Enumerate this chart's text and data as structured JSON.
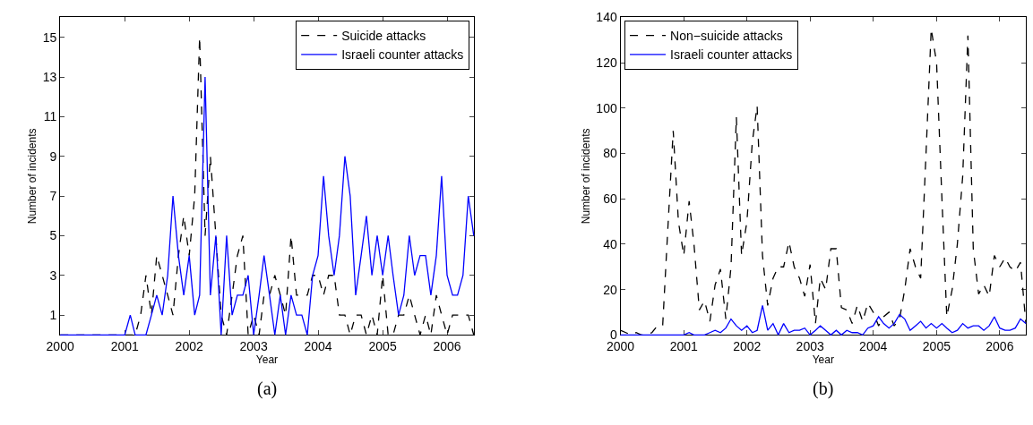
{
  "chart_data": [
    {
      "type": "line",
      "xlabel": "Year",
      "ylabel": "Number of incidents",
      "annotations": [
        "(a)"
      ],
      "legend": "top right",
      "marker": "none",
      "x": [
        "2000-01",
        "2000-02",
        "2000-03",
        "2000-04",
        "2000-05",
        "2000-06",
        "2000-07",
        "2000-08",
        "2000-09",
        "2000-10",
        "2000-11",
        "2000-12",
        "2001-01",
        "2001-02",
        "2001-03",
        "2001-04",
        "2001-05",
        "2001-06",
        "2001-07",
        "2001-08",
        "2001-09",
        "2001-10",
        "2001-11",
        "2001-12",
        "2002-01",
        "2002-02",
        "2002-03",
        "2002-04",
        "2002-05",
        "2002-06",
        "2002-07",
        "2002-08",
        "2002-09",
        "2002-10",
        "2002-11",
        "2002-12",
        "2003-01",
        "2003-02",
        "2003-03",
        "2003-04",
        "2003-05",
        "2003-06",
        "2003-07",
        "2003-08",
        "2003-09",
        "2003-10",
        "2003-11",
        "2003-12",
        "2004-01",
        "2004-02",
        "2004-03",
        "2004-04",
        "2004-05",
        "2004-06",
        "2004-07",
        "2004-08",
        "2004-09",
        "2004-10",
        "2004-11",
        "2004-12",
        "2005-01",
        "2005-02",
        "2005-03",
        "2005-04",
        "2005-05",
        "2005-06",
        "2005-07",
        "2005-08",
        "2005-09",
        "2005-10",
        "2005-11",
        "2005-12",
        "2006-01",
        "2006-02",
        "2006-03",
        "2006-04",
        "2006-05",
        "2006-06"
      ],
      "xlim": [
        "2000-01",
        "2006-06"
      ],
      "xticks": [
        {
          "value": "2000-01",
          "label": "2000"
        },
        {
          "value": "2001-01",
          "label": "2001"
        },
        {
          "value": "2002-01",
          "label": "2002"
        },
        {
          "value": "2003-01",
          "label": "2003"
        },
        {
          "value": "2004-01",
          "label": "2004"
        },
        {
          "value": "2005-01",
          "label": "2005"
        },
        {
          "value": "2006-01",
          "label": "2006"
        }
      ],
      "ylim": [
        0,
        16
      ],
      "yticks": [
        1,
        3,
        5,
        7,
        9,
        11,
        13,
        15
      ],
      "series": [
        {
          "name": "Suicide attacks",
          "color": "#000000",
          "line_style": "dashed",
          "values": [
            0,
            0,
            0,
            0,
            0,
            0,
            0,
            0,
            0,
            0,
            0,
            0,
            0,
            0,
            0,
            1,
            3,
            1,
            4,
            3,
            2,
            1,
            4,
            6,
            4,
            7,
            15,
            5,
            9,
            5,
            1,
            0,
            2,
            4,
            5,
            0,
            1,
            0,
            2,
            2,
            3,
            2,
            1,
            5,
            2,
            2,
            2,
            3,
            3,
            2,
            3,
            3,
            1,
            1,
            0,
            1,
            1,
            0,
            1,
            0,
            3,
            0,
            0,
            1,
            1,
            2,
            1,
            0,
            1,
            0,
            2,
            1,
            0,
            1,
            1,
            1,
            1,
            0
          ]
        },
        {
          "name": "Israeli counter attacks",
          "color": "#0000ff",
          "line_style": "solid",
          "values": [
            0,
            0,
            0,
            0,
            0,
            0,
            0,
            0,
            0,
            0,
            0,
            0,
            0,
            1,
            0,
            0,
            0,
            1,
            2,
            1,
            3,
            7,
            4,
            2,
            4,
            1,
            2,
            13,
            2,
            5,
            0,
            5,
            1,
            2,
            2,
            3,
            0,
            2,
            4,
            2,
            0,
            2,
            0,
            2,
            1,
            1,
            0,
            3,
            4,
            8,
            5,
            3,
            5,
            9,
            7,
            2,
            4,
            6,
            3,
            5,
            3,
            5,
            3,
            1,
            2,
            5,
            3,
            4,
            4,
            2,
            4,
            8,
            3,
            2,
            2,
            3,
            7,
            5
          ]
        }
      ]
    },
    {
      "type": "line",
      "xlabel": "Year",
      "ylabel": "Number of incidents",
      "annotations": [
        "(b)"
      ],
      "legend": "top left",
      "marker": "none",
      "x": [
        "2000-01",
        "2000-02",
        "2000-03",
        "2000-04",
        "2000-05",
        "2000-06",
        "2000-07",
        "2000-08",
        "2000-09",
        "2000-10",
        "2000-11",
        "2000-12",
        "2001-01",
        "2001-02",
        "2001-03",
        "2001-04",
        "2001-05",
        "2001-06",
        "2001-07",
        "2001-08",
        "2001-09",
        "2001-10",
        "2001-11",
        "2001-12",
        "2002-01",
        "2002-02",
        "2002-03",
        "2002-04",
        "2002-05",
        "2002-06",
        "2002-07",
        "2002-08",
        "2002-09",
        "2002-10",
        "2002-11",
        "2002-12",
        "2003-01",
        "2003-02",
        "2003-03",
        "2003-04",
        "2003-05",
        "2003-06",
        "2003-07",
        "2003-08",
        "2003-09",
        "2003-10",
        "2003-11",
        "2003-12",
        "2004-01",
        "2004-02",
        "2004-03",
        "2004-04",
        "2004-05",
        "2004-06",
        "2004-07",
        "2004-08",
        "2004-09",
        "2004-10",
        "2004-11",
        "2004-12",
        "2005-01",
        "2005-02",
        "2005-03",
        "2005-04",
        "2005-05",
        "2005-06",
        "2005-07",
        "2005-08",
        "2005-09",
        "2005-10",
        "2005-11",
        "2005-12",
        "2006-01",
        "2006-02",
        "2006-03",
        "2006-04",
        "2006-05",
        "2006-06"
      ],
      "xlim": [
        "2000-01",
        "2006-06"
      ],
      "xticks": [
        {
          "value": "2000-01",
          "label": "2000"
        },
        {
          "value": "2001-01",
          "label": "2001"
        },
        {
          "value": "2002-01",
          "label": "2002"
        },
        {
          "value": "2003-01",
          "label": "2003"
        },
        {
          "value": "2004-01",
          "label": "2004"
        },
        {
          "value": "2005-01",
          "label": "2005"
        },
        {
          "value": "2006-01",
          "label": "2006"
        }
      ],
      "ylim": [
        0,
        140
      ],
      "yticks": [
        0,
        20,
        40,
        60,
        80,
        100,
        120,
        140
      ],
      "series": [
        {
          "name": "Non−suicide attacks",
          "color": "#000000",
          "line_style": "dashed",
          "values": [
            2,
            1,
            0,
            1,
            0,
            0,
            1,
            4,
            4,
            47,
            90,
            50,
            35,
            59,
            40,
            11,
            15,
            6,
            22,
            29,
            7,
            30,
            96,
            35,
            50,
            85,
            101,
            35,
            13,
            25,
            30,
            30,
            41,
            30,
            25,
            17,
            31,
            5,
            25,
            20,
            38,
            38,
            12,
            11,
            5,
            13,
            6,
            14,
            10,
            4,
            8,
            10,
            4,
            7,
            20,
            38,
            30,
            25,
            80,
            135,
            120,
            60,
            8,
            20,
            40,
            70,
            132,
            38,
            18,
            22,
            17,
            35,
            30,
            34,
            30,
            28,
            32,
            5
          ]
        },
        {
          "name": "Israeli counter attacks",
          "color": "#0000ff",
          "line_style": "solid",
          "values": [
            0,
            0,
            0,
            0,
            0,
            0,
            0,
            0,
            0,
            0,
            0,
            0,
            0,
            1,
            0,
            0,
            0,
            1,
            2,
            1,
            3,
            7,
            4,
            2,
            4,
            1,
            2,
            13,
            2,
            5,
            0,
            5,
            1,
            2,
            2,
            3,
            0,
            2,
            4,
            2,
            0,
            2,
            0,
            2,
            1,
            1,
            0,
            3,
            4,
            8,
            5,
            3,
            5,
            9,
            7,
            2,
            4,
            6,
            3,
            5,
            3,
            5,
            3,
            1,
            2,
            5,
            3,
            4,
            4,
            2,
            4,
            8,
            3,
            2,
            2,
            3,
            7,
            5
          ]
        }
      ]
    }
  ]
}
